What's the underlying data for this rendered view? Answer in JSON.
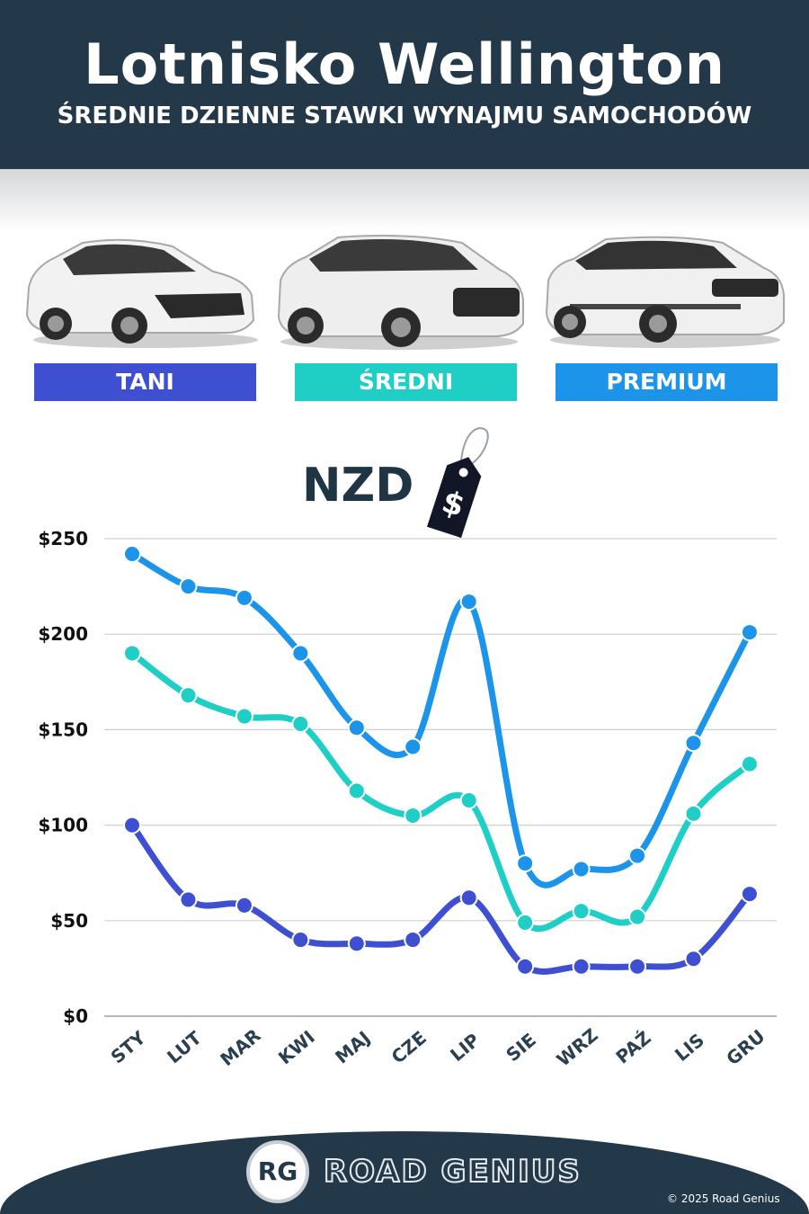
{
  "header": {
    "title": "Lotnisko Wellington",
    "subtitle": "ŚREDNIE DZIENNE STAWKI WYNAJMU SAMOCHODÓW"
  },
  "categories": [
    {
      "label": "TANI",
      "color": "#3f4fd1",
      "icon": "hatchback-car-icon"
    },
    {
      "label": "ŚREDNI",
      "color": "#1fcfc6",
      "icon": "suv-car-icon"
    },
    {
      "label": "PREMIUM",
      "color": "#1c94ea",
      "icon": "premium-suv-icon"
    }
  ],
  "currency": {
    "label": "NZD",
    "symbol": "$",
    "icon": "price-tag-icon"
  },
  "chart_data": {
    "type": "line",
    "x": [
      "STY",
      "LUT",
      "MAR",
      "KWI",
      "MAJ",
      "CZE",
      "LIP",
      "SIE",
      "WRZ",
      "PAŹ",
      "LIS",
      "GRU"
    ],
    "series": [
      {
        "name": "PREMIUM",
        "color": "#1c94ea",
        "values": [
          242,
          225,
          219,
          190,
          151,
          141,
          217,
          80,
          77,
          84,
          143,
          201
        ]
      },
      {
        "name": "ŚREDNI",
        "color": "#1fcfc6",
        "values": [
          190,
          168,
          157,
          153,
          118,
          105,
          113,
          49,
          55,
          52,
          106,
          132
        ]
      },
      {
        "name": "TANI",
        "color": "#3f4fd1",
        "values": [
          100,
          61,
          58,
          40,
          38,
          40,
          62,
          26,
          26,
          26,
          30,
          64
        ]
      }
    ],
    "yticks": [
      "$0",
      "$50",
      "$100",
      "$150",
      "$200",
      "$250"
    ],
    "ylim": [
      0,
      250
    ],
    "grid": true
  },
  "footer": {
    "logo_initials": "RG",
    "brand": "ROAD GENIUS",
    "copyright": "© 2025 Road Genius"
  }
}
